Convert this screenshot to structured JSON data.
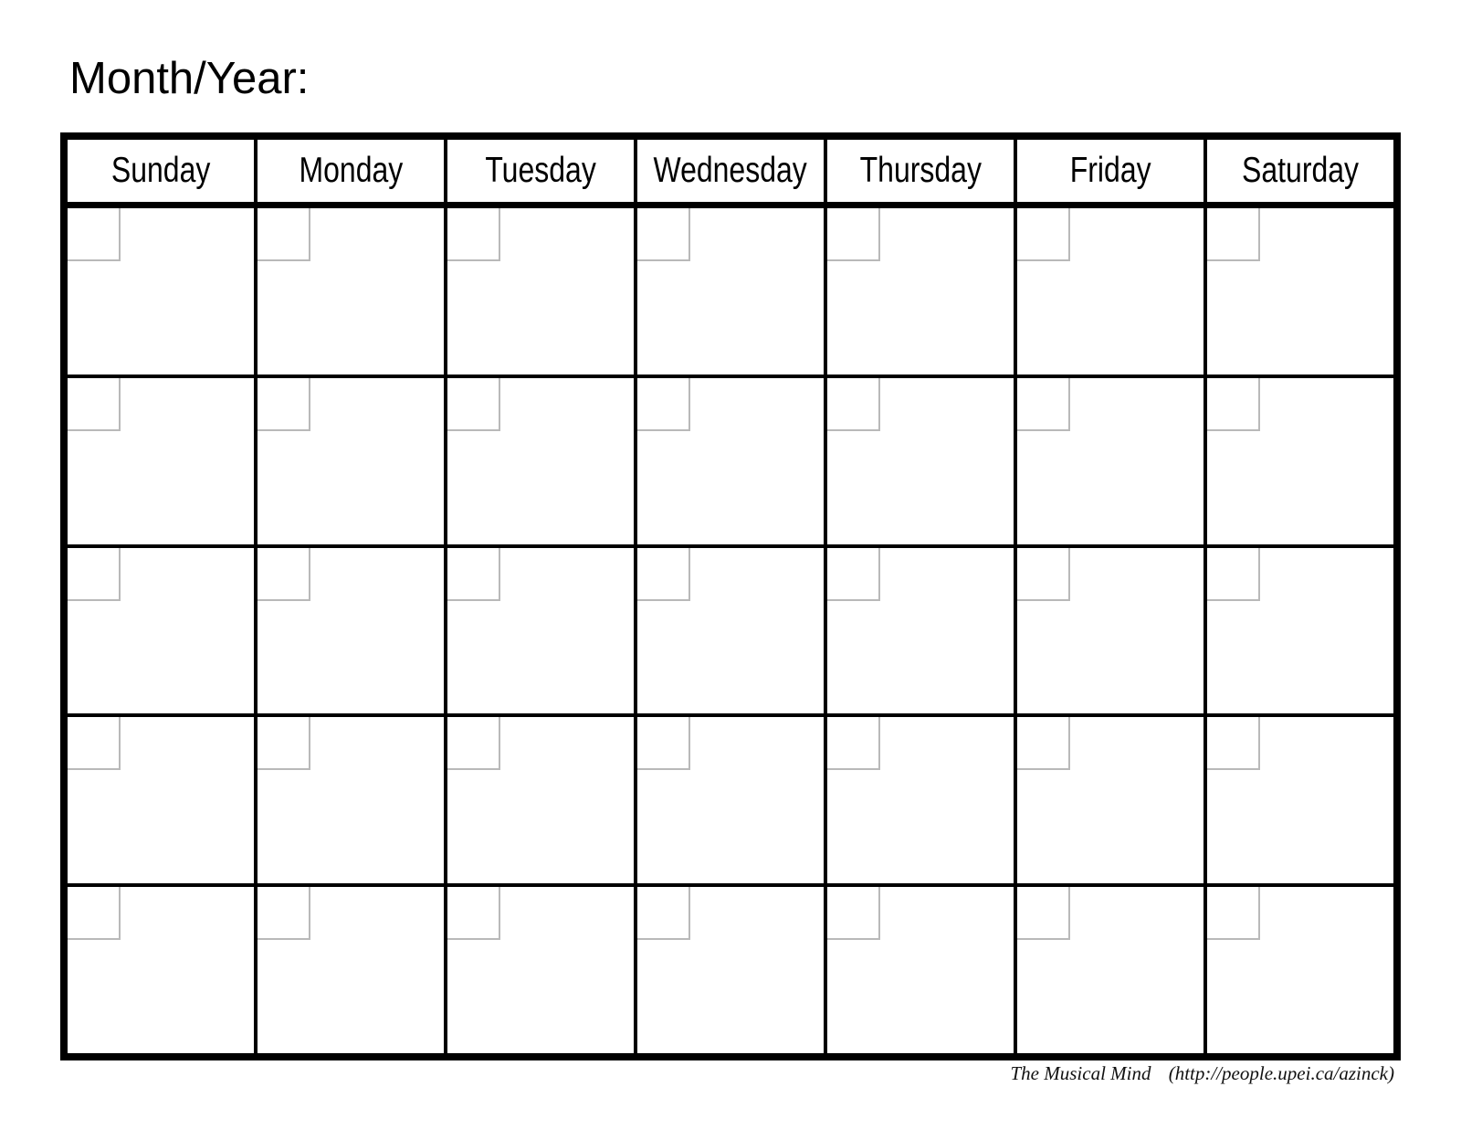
{
  "page": {
    "title": "Month/Year:"
  },
  "calendar": {
    "day_headers": [
      "Sunday",
      "Monday",
      "Tuesday",
      "Wednesday",
      "Thursday",
      "Friday",
      "Saturday"
    ],
    "weeks": 5,
    "cells_per_week": 7,
    "cell_values": [],
    "colors": {
      "grid_border": "#000000",
      "date_box_border": "#b9b9b9",
      "background": "#ffffff"
    }
  },
  "footer": {
    "credit": "The Musical Mind",
    "url": "(http://people.upei.ca/azinck)"
  }
}
